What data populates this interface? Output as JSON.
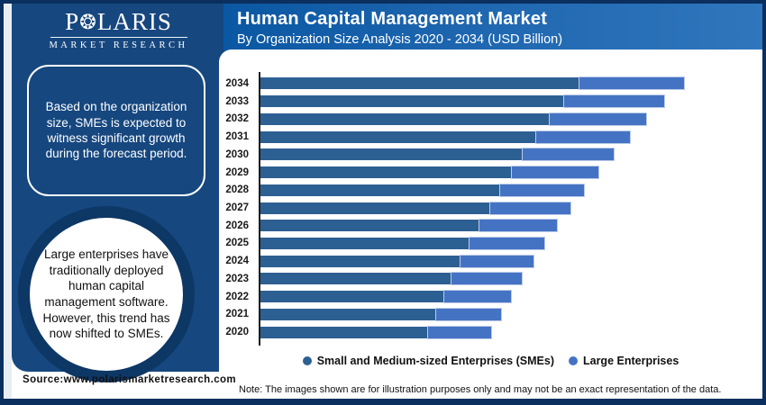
{
  "branding": {
    "logo_word_start": "P",
    "logo_star_icon": "❂",
    "logo_word_end": "LARIS",
    "logo_subtitle": "MARKET RESEARCH"
  },
  "header": {
    "title": "Human Capital Management Market",
    "subtitle": "By Organization Size Analysis 2020 - 2034 (USD Billion)"
  },
  "sidebar": {
    "callout_box_text": "Based on the organization size, SMEs is expected to witness significant growth during the forecast period.",
    "callout_circle_text": "Large enterprises have traditionally deployed human capital management software. However, this trend has now shifted to SMEs."
  },
  "footer": {
    "source": "Source:www.polarismarketresearch.com",
    "note": "Note: The images shown are for illustration purposes only and may not be an exact representation of the data."
  },
  "colors": {
    "sidebar_navy": "#16477f",
    "circle_ring_navy": "#0d3765",
    "frame_border_navy": "#0b2f5e",
    "header_blue_start": "#0a57a3",
    "header_blue_end": "#2f76bd",
    "sme_bar": "#2d6092",
    "large_bar": "#4573c4"
  },
  "chart_data": {
    "type": "bar",
    "orientation": "horizontal",
    "stacked": true,
    "title": "Human Capital Management Market",
    "subtitle": "By Organization Size Analysis 2020 - 2034 (USD Billion)",
    "value_axis_labeled": false,
    "units": "relative units (no value labels shown on chart)",
    "legend_position": "bottom",
    "grid": false,
    "categories_top_to_bottom": [
      "2034",
      "2033",
      "2032",
      "2031",
      "2030",
      "2029",
      "2028",
      "2027",
      "2026",
      "2025",
      "2024",
      "2023",
      "2022",
      "2021",
      "2020"
    ],
    "series": [
      {
        "name": "Small and Medium-sized Enterprises (SMEs)",
        "color": "#2d6092",
        "values_top_to_bottom": [
          355,
          338,
          322,
          307,
          292,
          280,
          267,
          256,
          244,
          233,
          223,
          213,
          205,
          196,
          187
        ]
      },
      {
        "name": "Large Enterprises",
        "color": "#4573c4",
        "values_top_to_bottom": [
          118,
          113,
          109,
          106,
          103,
          98,
          95,
          91,
          88,
          85,
          83,
          80,
          76,
          74,
          72
        ]
      }
    ]
  }
}
